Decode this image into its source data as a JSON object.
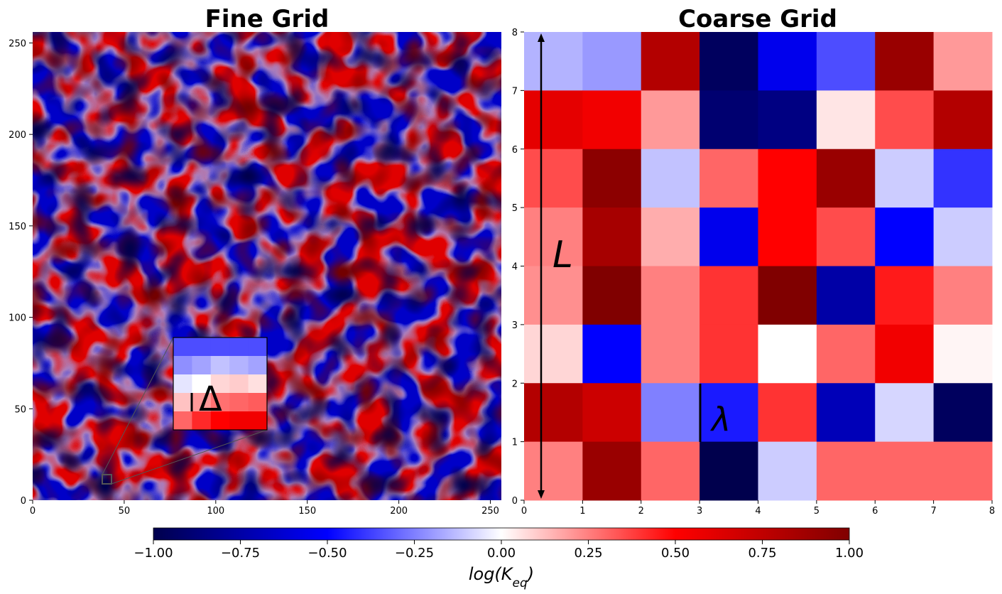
{
  "chart_data": [
    {
      "type": "heatmap",
      "title": "Fine Grid",
      "xlim": [
        0,
        256
      ],
      "ylim": [
        0,
        256
      ],
      "xticks": [
        "0",
        "50",
        "100",
        "150",
        "200",
        "250"
      ],
      "yticks": [
        "0",
        "50",
        "100",
        "150",
        "200",
        "250"
      ],
      "inset": {
        "label": "Δ",
        "zoom_region": {
          "x": [
            38,
            44
          ],
          "y": [
            8,
            14
          ]
        }
      }
    },
    {
      "type": "heatmap",
      "title": "Coarse Grid",
      "xlim": [
        0,
        8
      ],
      "ylim": [
        0,
        8
      ],
      "xticks": [
        "0",
        "1",
        "2",
        "3",
        "4",
        "5",
        "6",
        "7",
        "8"
      ],
      "yticks": [
        "0",
        "1",
        "2",
        "3",
        "4",
        "5",
        "6",
        "7",
        "8"
      ],
      "values_top_to_bottom": [
        [
          -0.15,
          -0.2,
          0.8,
          -0.95,
          -0.55,
          -0.35,
          0.9,
          0.2
        ],
        [
          0.6,
          0.55,
          0.2,
          -0.9,
          -0.85,
          0.05,
          0.35,
          0.8
        ],
        [
          0.35,
          0.95,
          -0.12,
          0.3,
          0.5,
          0.9,
          -0.1,
          -0.4
        ],
        [
          0.25,
          0.85,
          0.16,
          -0.55,
          0.5,
          0.35,
          -0.5,
          -0.1
        ],
        [
          0.22,
          1.0,
          0.25,
          0.4,
          1.0,
          -0.75,
          0.45,
          0.25
        ],
        [
          0.08,
          -0.5,
          0.25,
          0.4,
          0.0,
          0.3,
          0.55,
          0.02
        ],
        [
          0.8,
          0.7,
          -0.25,
          -0.45,
          0.4,
          -0.7,
          -0.08,
          -0.95
        ],
        [
          0.25,
          0.9,
          0.3,
          -1.0,
          -0.1,
          0.3,
          0.3,
          0.3
        ]
      ],
      "annotations": [
        "L",
        "λ"
      ]
    }
  ],
  "colorbar": {
    "label": "log(Keq)",
    "range": [
      -1.0,
      1.0
    ],
    "colormap": "seismic",
    "ticks": [
      "−1.00",
      "−0.75",
      "−0.50",
      "−0.25",
      "0.00",
      "0.25",
      "0.50",
      "0.75",
      "1.00"
    ]
  }
}
